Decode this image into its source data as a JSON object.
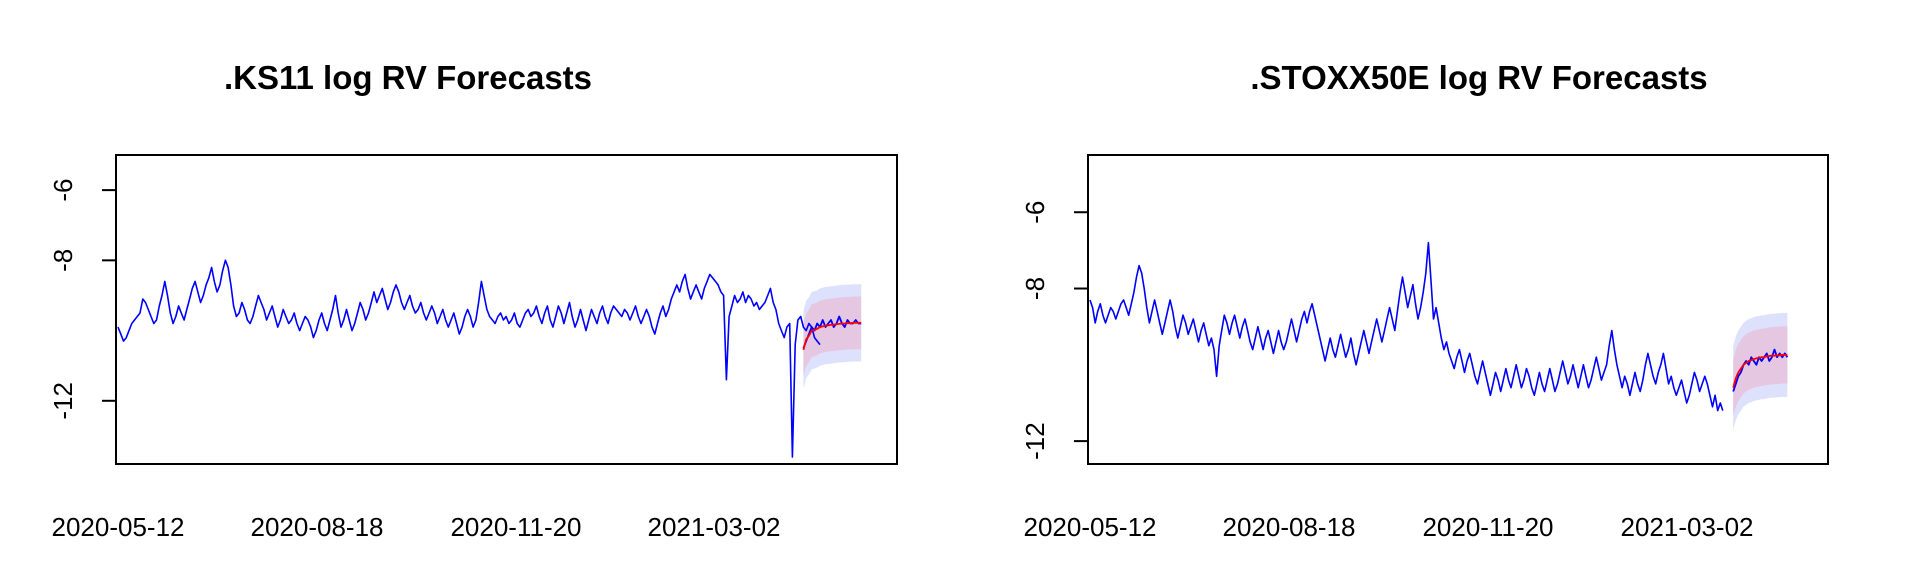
{
  "chart_data": [
    {
      "type": "line",
      "title": ".KS11 log RV Forecasts",
      "xlabel": "",
      "ylabel": "",
      "x_tick_labels": [
        "2020-05-12",
        "2020-08-18",
        "2020-11-20",
        "2021-03-02"
      ],
      "y_ticks": [
        -6,
        -8,
        -12
      ],
      "ylim": [
        -13.8,
        -5.0
      ],
      "grid": false,
      "legend": "none",
      "n_observed": 250,
      "n_forecast": 22,
      "colors": {
        "observed": "#0000ff",
        "forecast": "#ff0000",
        "band_outer": "#d8dcfb",
        "band_inner": "#e6c2dc"
      },
      "series": [
        {
          "values": [
            -9.9,
            -10.1,
            -10.3,
            -10.2,
            -10.0,
            -9.8,
            -9.7,
            -9.6,
            -9.5,
            -9.1,
            -9.2,
            -9.4,
            -9.6,
            -9.8,
            -9.7,
            -9.3,
            -9.0,
            -8.6,
            -9.0,
            -9.5,
            -9.8,
            -9.6,
            -9.3,
            -9.5,
            -9.7,
            -9.4,
            -9.1,
            -8.8,
            -8.6,
            -8.9,
            -9.2,
            -9.0,
            -8.7,
            -8.5,
            -8.2,
            -8.6,
            -8.9,
            -8.7,
            -8.3,
            -8.0,
            -8.2,
            -8.7,
            -9.3,
            -9.6,
            -9.5,
            -9.2,
            -9.4,
            -9.7,
            -9.8,
            -9.6,
            -9.3,
            -9.0,
            -9.2,
            -9.4,
            -9.7,
            -9.5,
            -9.3,
            -9.6,
            -9.9,
            -9.7,
            -9.4,
            -9.6,
            -9.8,
            -9.7,
            -9.5,
            -9.8,
            -10.0,
            -9.8,
            -9.6,
            -9.7,
            -9.9,
            -10.2,
            -10.0,
            -9.7,
            -9.5,
            -9.8,
            -10.0,
            -9.7,
            -9.4,
            -9.0,
            -9.5,
            -9.9,
            -9.7,
            -9.4,
            -9.7,
            -10.0,
            -9.8,
            -9.5,
            -9.2,
            -9.4,
            -9.7,
            -9.5,
            -9.2,
            -8.9,
            -9.2,
            -9.0,
            -8.8,
            -9.1,
            -9.4,
            -9.2,
            -8.9,
            -8.7,
            -8.9,
            -9.2,
            -9.4,
            -9.2,
            -9.0,
            -9.3,
            -9.5,
            -9.4,
            -9.2,
            -9.5,
            -9.7,
            -9.5,
            -9.3,
            -9.5,
            -9.8,
            -9.6,
            -9.4,
            -9.7,
            -9.9,
            -9.7,
            -9.5,
            -9.8,
            -10.1,
            -9.9,
            -9.6,
            -9.4,
            -9.6,
            -9.9,
            -9.7,
            -9.2,
            -8.6,
            -9.0,
            -9.4,
            -9.6,
            -9.7,
            -9.8,
            -9.6,
            -9.5,
            -9.7,
            -9.6,
            -9.8,
            -9.7,
            -9.5,
            -9.8,
            -9.9,
            -9.7,
            -9.5,
            -9.4,
            -9.6,
            -9.5,
            -9.3,
            -9.6,
            -9.8,
            -9.5,
            -9.3,
            -9.7,
            -9.9,
            -9.6,
            -9.3,
            -9.5,
            -9.8,
            -9.5,
            -9.2,
            -9.6,
            -9.9,
            -9.7,
            -9.4,
            -9.7,
            -10.0,
            -9.7,
            -9.4,
            -9.6,
            -9.8,
            -9.5,
            -9.3,
            -9.6,
            -9.8,
            -9.5,
            -9.3,
            -9.4,
            -9.5,
            -9.6,
            -9.4,
            -9.5,
            -9.7,
            -9.5,
            -9.3,
            -9.6,
            -9.8,
            -9.6,
            -9.4,
            -9.6,
            -9.9,
            -10.1,
            -9.8,
            -9.5,
            -9.3,
            -9.6,
            -9.4,
            -9.1,
            -8.9,
            -8.7,
            -8.9,
            -8.6,
            -8.4,
            -8.8,
            -9.1,
            -8.9,
            -8.7,
            -8.9,
            -9.1,
            -8.8,
            -8.6,
            -8.4,
            -8.5,
            -8.6,
            -8.7,
            -8.9,
            -9.0,
            -11.4,
            -9.6,
            -9.3,
            -9.0,
            -9.2,
            -9.1,
            -8.9,
            -9.2,
            -9.0,
            -9.1,
            -9.3,
            -9.2,
            -9.4,
            -9.3,
            -9.2,
            -9.0,
            -8.8,
            -9.2,
            -9.4,
            -9.8,
            -10.0,
            -10.2,
            -9.9,
            -9.8,
            -13.6,
            -10.4,
            -9.7,
            -9.6,
            -9.9,
            -10.0,
            -9.8,
            -9.9,
            -10.2,
            -10.3,
            -10.4
          ],
          "forecast": [
            -10.55,
            -10.25,
            -10.15,
            -10.0,
            -9.98,
            -9.95,
            -9.9,
            -9.88,
            -9.86,
            -9.85,
            -9.84,
            -9.83,
            -9.82,
            -9.81,
            -9.8,
            -9.8,
            -9.79,
            -9.79,
            -9.78,
            -9.78,
            -9.78,
            -9.78
          ],
          "realized": [
            -10.5,
            -10.3,
            -10.1,
            -9.9,
            -10.0,
            -9.8,
            -9.9,
            -9.7,
            -9.9,
            -9.8,
            -9.7,
            -9.9,
            -9.8,
            -9.6,
            -9.8,
            -9.9,
            -9.7,
            -9.8,
            -9.8,
            -9.7,
            -9.8,
            -9.8
          ],
          "band_inner_halfwidth": 0.75,
          "band_outer_halfwidth": 1.1
        }
      ]
    },
    {
      "type": "line",
      "title": ".STOXX50E log RV Forecasts",
      "xlabel": "",
      "ylabel": "",
      "x_tick_labels": [
        "2020-05-12",
        "2020-08-18",
        "2020-11-20",
        "2021-03-02"
      ],
      "y_ticks": [
        -6,
        -8,
        -12
      ],
      "ylim": [
        -12.6,
        -4.5
      ],
      "grid": false,
      "legend": "none",
      "n_observed": 250,
      "n_forecast": 22,
      "colors": {
        "observed": "#0000ff",
        "forecast": "#ff0000",
        "band_outer": "#d8dcfb",
        "band_inner": "#e6c2dc"
      },
      "series": [
        {
          "values": [
            -8.3,
            -8.5,
            -8.9,
            -8.6,
            -8.4,
            -8.7,
            -8.9,
            -8.7,
            -8.5,
            -8.6,
            -8.8,
            -8.6,
            -8.4,
            -8.3,
            -8.5,
            -8.7,
            -8.4,
            -8.1,
            -7.7,
            -7.4,
            -7.6,
            -8.0,
            -8.5,
            -8.9,
            -8.6,
            -8.3,
            -8.6,
            -8.9,
            -9.2,
            -8.9,
            -8.6,
            -8.3,
            -8.6,
            -9.0,
            -9.3,
            -9.0,
            -8.7,
            -8.9,
            -9.2,
            -9.0,
            -8.8,
            -9.1,
            -9.4,
            -9.1,
            -8.9,
            -9.2,
            -9.5,
            -9.3,
            -9.6,
            -10.3,
            -9.5,
            -9.1,
            -8.7,
            -8.9,
            -9.2,
            -8.9,
            -8.7,
            -9.0,
            -9.3,
            -9.0,
            -8.8,
            -9.1,
            -9.4,
            -9.6,
            -9.3,
            -9.0,
            -9.3,
            -9.6,
            -9.3,
            -9.1,
            -9.4,
            -9.7,
            -9.4,
            -9.1,
            -9.4,
            -9.6,
            -9.4,
            -9.1,
            -8.8,
            -9.1,
            -9.4,
            -9.1,
            -8.8,
            -8.6,
            -8.9,
            -8.6,
            -8.4,
            -8.7,
            -9.0,
            -9.3,
            -9.6,
            -9.9,
            -9.6,
            -9.3,
            -9.6,
            -9.8,
            -9.5,
            -9.2,
            -9.5,
            -9.8,
            -9.6,
            -9.3,
            -9.7,
            -10.0,
            -9.7,
            -9.4,
            -9.1,
            -9.4,
            -9.7,
            -9.4,
            -9.1,
            -8.8,
            -9.1,
            -9.4,
            -9.1,
            -8.8,
            -8.5,
            -8.8,
            -9.1,
            -8.6,
            -8.1,
            -7.7,
            -8.1,
            -8.5,
            -8.2,
            -7.9,
            -8.4,
            -8.8,
            -8.5,
            -8.1,
            -7.6,
            -6.8,
            -7.8,
            -8.8,
            -8.5,
            -8.9,
            -9.3,
            -9.6,
            -9.4,
            -9.7,
            -9.9,
            -10.1,
            -9.8,
            -9.6,
            -9.9,
            -10.2,
            -9.9,
            -9.7,
            -10.0,
            -10.3,
            -10.5,
            -10.2,
            -9.9,
            -10.2,
            -10.5,
            -10.8,
            -10.5,
            -10.2,
            -10.4,
            -10.7,
            -10.4,
            -10.1,
            -10.4,
            -10.6,
            -10.3,
            -10.0,
            -10.3,
            -10.6,
            -10.4,
            -10.1,
            -10.3,
            -10.6,
            -10.8,
            -10.5,
            -10.2,
            -10.5,
            -10.7,
            -10.4,
            -10.1,
            -10.4,
            -10.7,
            -10.5,
            -10.2,
            -9.9,
            -10.2,
            -10.5,
            -10.3,
            -10.0,
            -10.3,
            -10.6,
            -10.3,
            -10.0,
            -10.3,
            -10.6,
            -10.4,
            -10.1,
            -9.8,
            -10.1,
            -10.4,
            -10.2,
            -10.0,
            -9.5,
            -9.1,
            -9.6,
            -10.0,
            -10.3,
            -10.6,
            -10.3,
            -10.5,
            -10.8,
            -10.5,
            -10.2,
            -10.5,
            -10.7,
            -10.4,
            -10.0,
            -9.7,
            -10.0,
            -10.3,
            -10.5,
            -10.2,
            -10.0,
            -9.7,
            -10.1,
            -10.5,
            -10.3,
            -10.6,
            -10.8,
            -10.6,
            -10.4,
            -10.7,
            -11.0,
            -10.8,
            -10.5,
            -10.2,
            -10.4,
            -10.7,
            -10.5,
            -10.3,
            -10.5,
            -10.8,
            -11.1,
            -10.8,
            -11.2,
            -11.0,
            -11.2
          ],
          "forecast": [
            -10.6,
            -10.35,
            -10.2,
            -10.1,
            -10.0,
            -9.95,
            -9.9,
            -9.88,
            -9.85,
            -9.83,
            -9.82,
            -9.8,
            -9.8,
            -9.78,
            -9.77,
            -9.76,
            -9.76,
            -9.75,
            -9.75,
            -9.74,
            -9.74,
            -9.74
          ],
          "realized": [
            -10.7,
            -10.5,
            -10.3,
            -10.2,
            -10.0,
            -9.9,
            -10.0,
            -9.8,
            -9.9,
            -10.0,
            -9.8,
            -9.9,
            -9.8,
            -9.7,
            -9.9,
            -9.8,
            -9.6,
            -9.8,
            -9.7,
            -9.8,
            -9.7,
            -9.8
          ],
          "band_inner_halfwidth": 0.75,
          "band_outer_halfwidth": 1.1
        }
      ]
    }
  ]
}
